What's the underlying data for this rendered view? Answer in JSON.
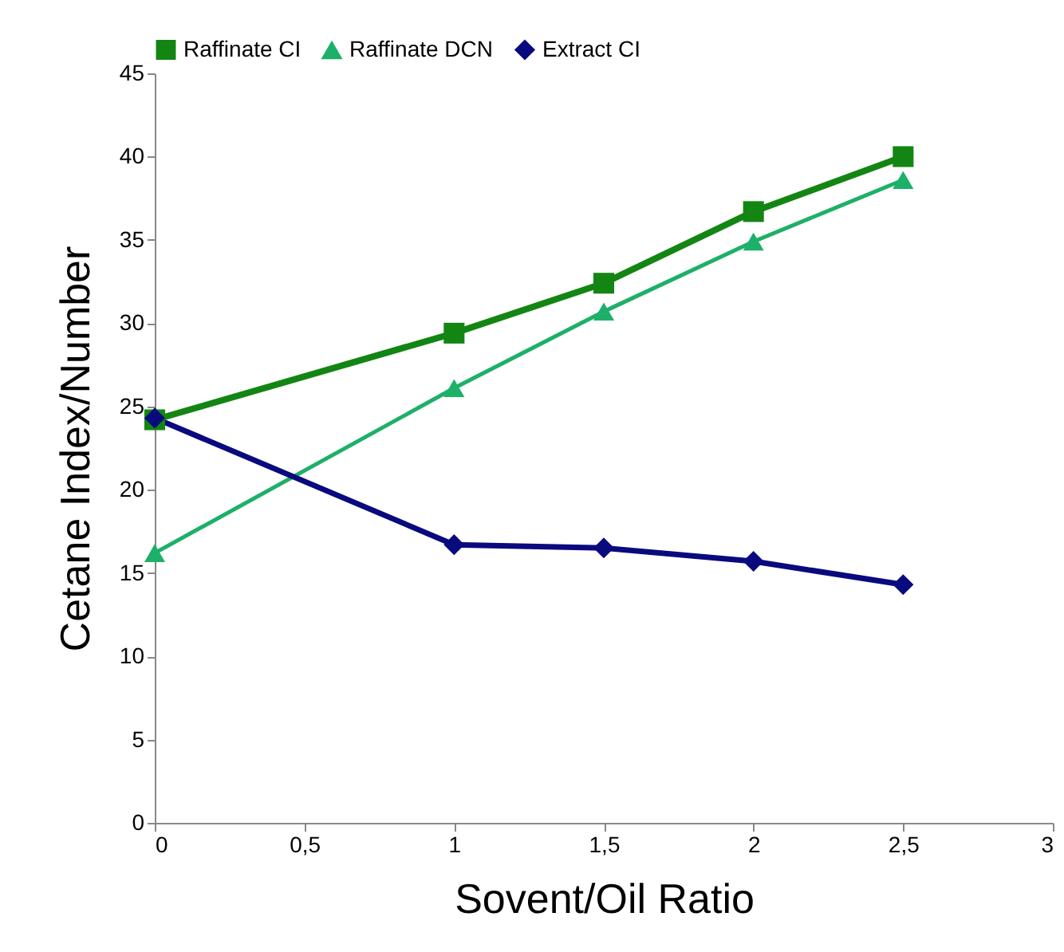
{
  "chart_data": {
    "type": "line",
    "xlabel": "Sovent/Oil Ratio",
    "ylabel": "Cetane Index/Number",
    "x": [
      0,
      1,
      1.5,
      2,
      2.5
    ],
    "series": [
      {
        "name": "Raffinate CI",
        "color": "#138513",
        "marker": "square",
        "values": [
          24.2,
          29.4,
          32.4,
          36.7,
          40.0
        ]
      },
      {
        "name": "Raffinate DCN",
        "color": "#1db068",
        "marker": "triangle",
        "values": [
          16.2,
          26.1,
          30.7,
          34.9,
          38.6
        ]
      },
      {
        "name": "Extract CI",
        "color": "#0a0a7f",
        "marker": "diamond",
        "values": [
          24.3,
          16.7,
          16.5,
          15.7,
          14.3
        ]
      }
    ],
    "xlim": [
      0,
      3
    ],
    "xticks": [
      0,
      {
        "value": 0.5,
        "label": "0,5"
      },
      1,
      {
        "value": 1.5,
        "label": "1,5"
      },
      2,
      {
        "value": 2.5,
        "label": "2,5"
      },
      3
    ],
    "ylim": [
      0,
      45
    ],
    "yticks": [
      0,
      5,
      10,
      15,
      20,
      25,
      30,
      35,
      40,
      45
    ],
    "grid": false,
    "legend": "top",
    "line_style": "solid"
  }
}
